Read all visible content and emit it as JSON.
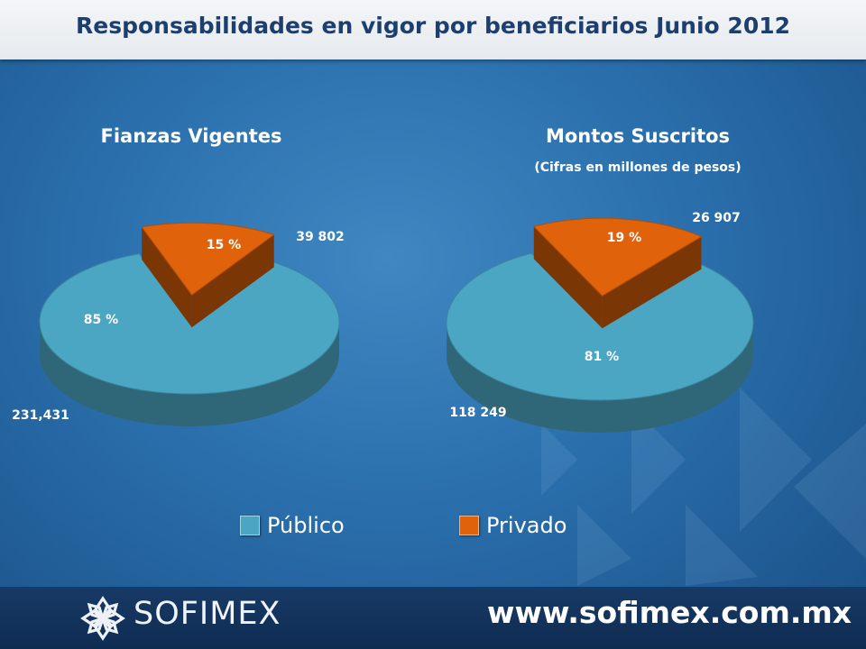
{
  "header": {
    "title": "Responsabilidades en vigor por beneficiarios Junio 2012"
  },
  "colors": {
    "publico": "#4ba6c3",
    "privado": "#e0620a"
  },
  "chart_data": [
    {
      "type": "pie",
      "title": "Fianzas Vigentes",
      "subtitle": "",
      "slices": [
        {
          "name": "Público",
          "value": 231431,
          "value_label": "231,431",
          "percent": 85,
          "percent_label": "85 %"
        },
        {
          "name": "Privado",
          "value": 39802,
          "value_label": "39 802",
          "percent": 15,
          "percent_label": "15 %"
        }
      ],
      "legend": "bottom"
    },
    {
      "type": "pie",
      "title": "Montos Suscritos",
      "subtitle": "(Cifras en millones de pesos)",
      "slices": [
        {
          "name": "Público",
          "value": 118249,
          "value_label": "118 249",
          "percent": 81,
          "percent_label": "81 %"
        },
        {
          "name": "Privado",
          "value": 26907,
          "value_label": "26 907",
          "percent": 19,
          "percent_label": "19 %"
        }
      ],
      "legend": "bottom"
    }
  ],
  "legend": {
    "items": [
      "Público",
      "Privado"
    ]
  },
  "footer": {
    "logo_text": "SOFIMEX",
    "url": "www.sofimex.com.mx"
  }
}
